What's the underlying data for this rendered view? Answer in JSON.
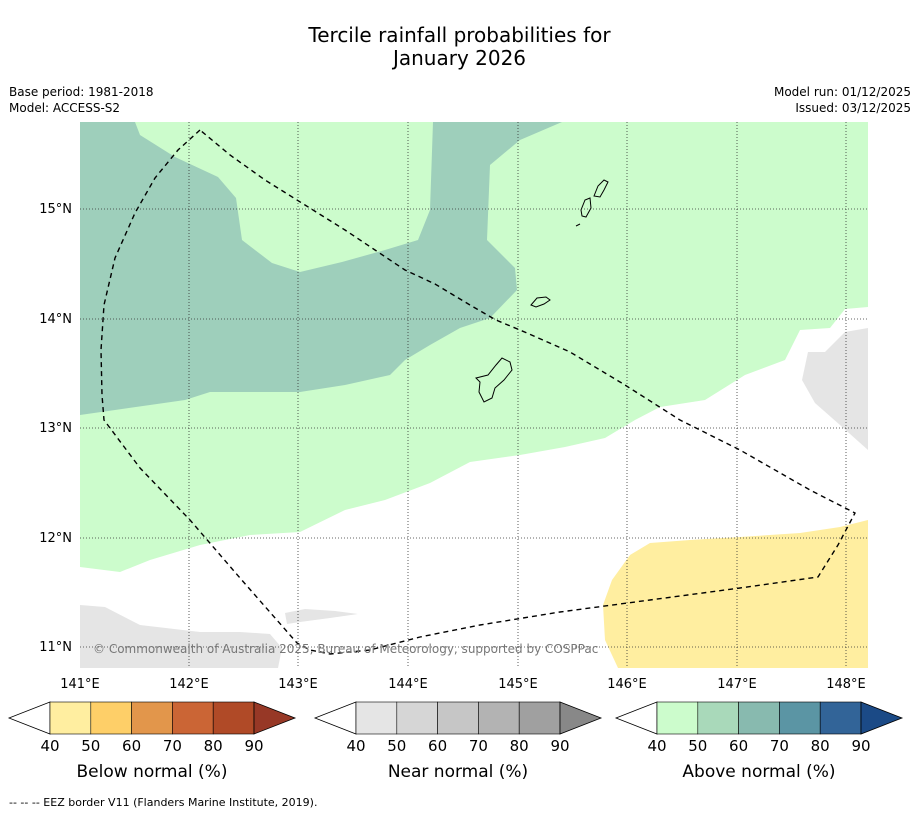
{
  "title": {
    "line1": "Tercile rainfall probabilities for",
    "line2": "January 2026"
  },
  "info": {
    "base_period": "Base period: 1981-2018",
    "model": "Model: ACCESS-S2",
    "model_run": "Model run: 01/12/2025",
    "issued": "Issued: 03/12/2025"
  },
  "map": {
    "lat_labels": [
      "15°N",
      "14°N",
      "13°N",
      "12°N",
      "11°N"
    ],
    "lon_labels": [
      "141°E",
      "142°E",
      "143°E",
      "144°E",
      "145°E",
      "146°E",
      "147°E",
      "148°E"
    ],
    "copyright": "© Commonwealth of Australia 2025, Bureau of Meteorology, supported by COSPPac"
  },
  "colorbars": [
    {
      "label": "Below normal (%)",
      "ticks": [
        "40",
        "50",
        "60",
        "70",
        "80",
        "90"
      ],
      "colors": [
        "#ffeea0",
        "#fecf68",
        "#e2964b",
        "#cb6535",
        "#b04a27",
        "#973826"
      ]
    },
    {
      "label": "Near normal (%)",
      "ticks": [
        "40",
        "50",
        "60",
        "70",
        "80",
        "90"
      ],
      "colors": [
        "#e5e5e5",
        "#d6d6d6",
        "#c6c6c6",
        "#b3b3b3",
        "#a0a0a0",
        "#888888"
      ]
    },
    {
      "label": "Above normal (%)",
      "ticks": [
        "40",
        "50",
        "60",
        "70",
        "80",
        "90"
      ],
      "colors": [
        "#ccfccc",
        "#a9d9ba",
        "#88baaf",
        "#5b95a4",
        "#326498",
        "#1b4a86"
      ]
    }
  ],
  "footer": "--  --  -- EEZ border V11 (Flanders Marine Institute, 2019)."
}
